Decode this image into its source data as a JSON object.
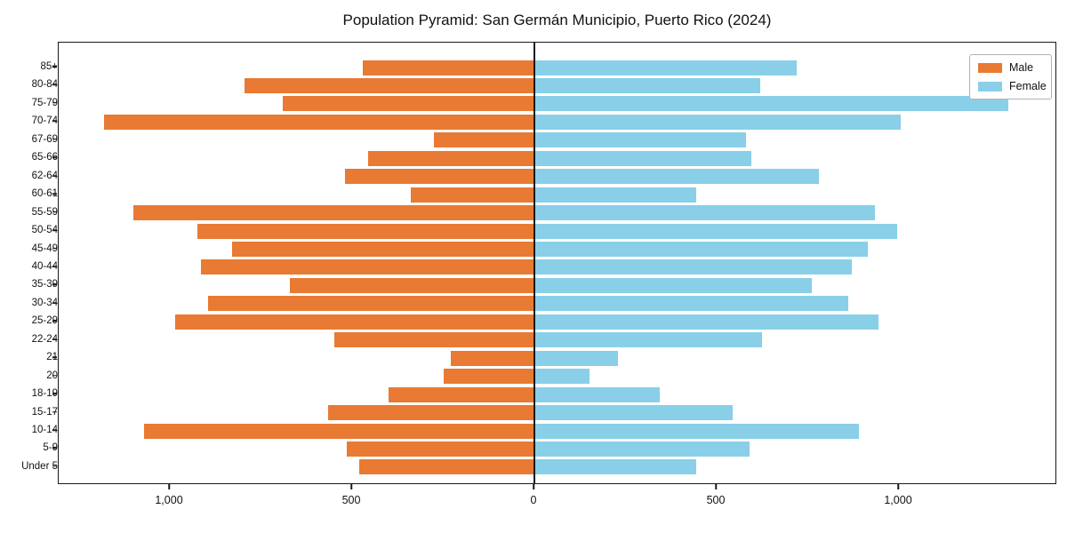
{
  "title": "Population Pyramid: San Germán Municipio, Puerto Rico (2024)",
  "legend": {
    "male_label": "Male",
    "female_label": "Female"
  },
  "colors": {
    "male": "#e87a33",
    "female": "#89cfe8",
    "axis": "#1a1a1a"
  },
  "chart_data": {
    "type": "bar",
    "subtype": "population-pyramid",
    "title": "Population Pyramid: San Germán Municipio, Puerto Rico (2024)",
    "categories_top_to_bottom": [
      "85+",
      "80-84",
      "75-79",
      "70-74",
      "67-69",
      "65-66",
      "62-64",
      "60-61",
      "55-59",
      "50-54",
      "45-49",
      "40-44",
      "35-39",
      "30-34",
      "25-29",
      "22-24",
      "21",
      "20",
      "18-19",
      "15-17",
      "10-14",
      "5-9",
      "Under 5"
    ],
    "series": [
      {
        "name": "Male",
        "side": "left",
        "color": "#e87a33",
        "values": [
          470,
          795,
          690,
          1180,
          275,
          455,
          520,
          340,
          1100,
          925,
          830,
          915,
          670,
          895,
          985,
          550,
          230,
          250,
          400,
          565,
          1070,
          515,
          480
        ]
      },
      {
        "name": "Female",
        "side": "right",
        "color": "#89cfe8",
        "values": [
          720,
          620,
          1300,
          1005,
          580,
          595,
          780,
          445,
          935,
          995,
          915,
          870,
          760,
          860,
          945,
          625,
          230,
          150,
          345,
          545,
          890,
          590,
          445
        ]
      }
    ],
    "x_tick_labels": [
      "1,000",
      "500",
      "0",
      "500",
      "1,000"
    ],
    "x_tick_values": [
      -1000,
      -500,
      0,
      500,
      1000
    ],
    "xlim": [
      -1305,
      1435
    ],
    "xlabel": "",
    "ylabel": "",
    "grid": false,
    "legend_position": "upper right"
  }
}
